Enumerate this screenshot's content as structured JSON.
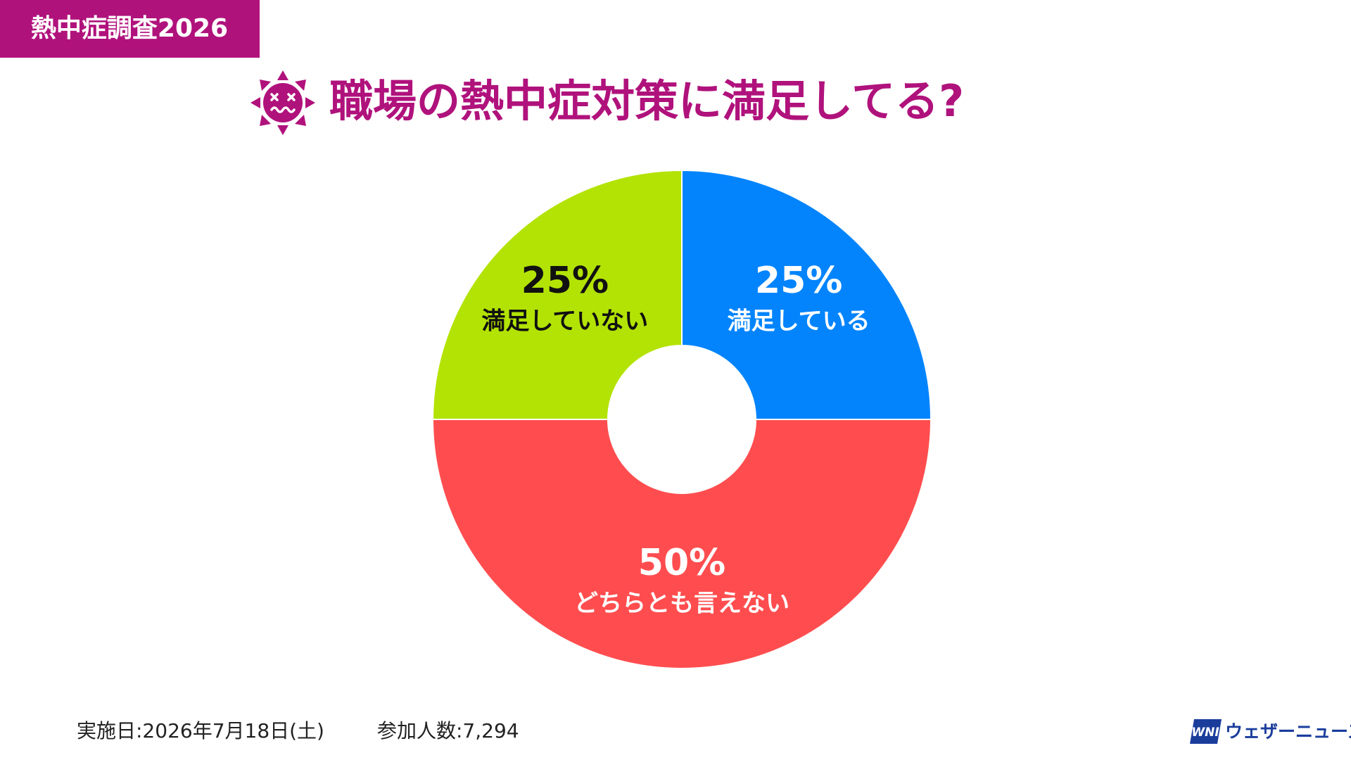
{
  "chart_data": {
    "type": "pie",
    "tag": "熱中症調査2026",
    "title": "職場の熱中症対策に満足してる?",
    "categories": [
      "満足している",
      "どちらとも言えない",
      "満足していない"
    ],
    "values": [
      25,
      50,
      25
    ],
    "value_labels": [
      "25%",
      "50%",
      "25%"
    ],
    "colors": [
      "#0384fc",
      "#ff4d4f",
      "#b3e304"
    ],
    "donut": true,
    "footer": [
      "実施日:2026年7月18日(土)",
      "参加人数:7,294"
    ],
    "logo": {
      "mark": "WNI",
      "text": "ウェザーニュース"
    }
  }
}
